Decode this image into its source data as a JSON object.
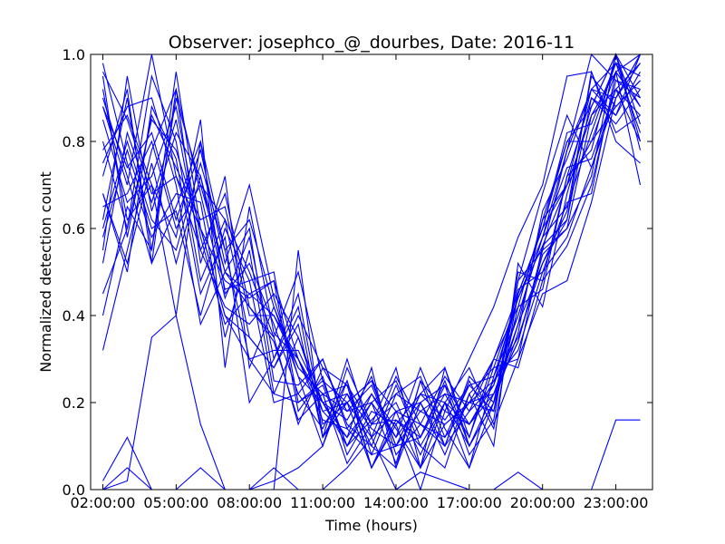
{
  "chart_data": {
    "type": "line",
    "title": "Observer: josephco_@_dourbes, Date: 2016-11",
    "xlabel": "Time (hours)",
    "ylabel": "Normalized detection count",
    "xlim": [
      1.5,
      24.5
    ],
    "ylim": [
      0.0,
      1.0
    ],
    "x": [
      2,
      3,
      4,
      5,
      6,
      7,
      8,
      9,
      10,
      11,
      12,
      13,
      14,
      15,
      16,
      17,
      18,
      19,
      20,
      21,
      22,
      23,
      24
    ],
    "x_ticks": [
      2,
      5,
      8,
      11,
      14,
      17,
      20,
      23
    ],
    "x_tick_labels": [
      "02:00:00",
      "05:00:00",
      "08:00:00",
      "11:00:00",
      "14:00:00",
      "17:00:00",
      "20:00:00",
      "23:00:00"
    ],
    "y_ticks": [
      0.0,
      0.2,
      0.4,
      0.6,
      0.8,
      1.0
    ],
    "y_tick_labels": [
      "0.0",
      "0.2",
      "0.4",
      "0.6",
      "0.8",
      "1.0"
    ],
    "line_color": "#0000ff",
    "grid": false,
    "legend": "none",
    "series": [
      {
        "values": [
          0.88,
          0.7,
          1.0,
          0.72,
          0.6,
          0.48,
          0.44,
          0.48,
          0.3,
          0.2,
          0.22,
          0.14,
          0.1,
          0.12,
          0.22,
          0.2,
          0.3,
          0.45,
          0.6,
          0.8,
          0.88,
          1.0,
          0.9
        ]
      },
      {
        "values": [
          0.62,
          0.9,
          0.55,
          0.9,
          0.7,
          0.62,
          0.5,
          0.35,
          0.5,
          0.25,
          0.2,
          0.05,
          0.15,
          0.0,
          0.18,
          0.3,
          0.42,
          0.58,
          0.7,
          0.95,
          0.96,
          0.8,
          0.75
        ]
      },
      {
        "values": [
          0.0,
          0.05,
          0.0,
          0.0,
          0.05,
          0.0,
          0.0,
          0.0,
          0.55,
          0.12,
          0.2,
          0.25,
          0.18,
          0.05,
          0.2,
          0.05,
          0.2,
          0.45,
          0.6,
          0.7,
          0.92,
          0.98,
          0.95
        ]
      },
      {
        "values": [
          0.02,
          0.12,
          0.0,
          0.0,
          0.0,
          0.0,
          0.0,
          0.02,
          0.05,
          0.1,
          0.25,
          0.08,
          0.1,
          0.22,
          0.28,
          0.1,
          0.2,
          0.48,
          0.55,
          0.78,
          1.0,
          0.94,
          0.92
        ]
      },
      {
        "values": [
          0.92,
          0.62,
          0.7,
          0.4,
          0.8,
          0.55,
          0.62,
          0.42,
          0.28,
          0.22,
          0.24,
          0.15,
          0.16,
          0.1,
          0.2,
          0.15,
          0.25,
          0.35,
          0.52,
          0.62,
          0.9,
          0.86,
          1.0
        ]
      },
      {
        "values": [
          0.8,
          0.6,
          0.85,
          0.78,
          0.6,
          0.4,
          0.3,
          0.22,
          0.35,
          0.2,
          0.12,
          0.2,
          0.06,
          0.25,
          0.1,
          0.18,
          0.24,
          0.4,
          0.58,
          0.65,
          0.82,
          0.98,
          0.88
        ]
      },
      {
        "values": [
          0.68,
          0.52,
          0.75,
          0.52,
          0.72,
          0.5,
          0.45,
          0.4,
          0.3,
          0.16,
          0.14,
          0.08,
          0.22,
          0.18,
          0.15,
          0.2,
          0.22,
          0.34,
          0.55,
          0.6,
          0.72,
          1.0,
          0.8
        ]
      },
      {
        "values": [
          0.58,
          0.78,
          0.6,
          0.64,
          0.4,
          0.6,
          0.48,
          0.5,
          0.2,
          0.25,
          0.1,
          0.22,
          0.12,
          0.2,
          0.08,
          0.22,
          0.28,
          0.3,
          0.45,
          0.48,
          0.66,
          0.9,
          1.0
        ]
      },
      {
        "values": [
          0.9,
          0.72,
          0.52,
          0.92,
          0.68,
          0.44,
          0.58,
          0.3,
          0.42,
          0.12,
          0.3,
          0.12,
          0.18,
          0.15,
          0.12,
          0.24,
          0.18,
          0.42,
          0.62,
          0.7,
          0.86,
          0.92,
          0.86
        ]
      },
      {
        "values": [
          0.75,
          0.88,
          0.9,
          0.7,
          0.38,
          0.5,
          0.42,
          0.35,
          0.15,
          0.28,
          0.18,
          0.2,
          0.25,
          0.12,
          0.24,
          0.08,
          0.16,
          0.5,
          0.48,
          0.72,
          0.78,
          1.0,
          0.84
        ]
      },
      {
        "values": [
          0.65,
          0.68,
          0.8,
          0.6,
          0.7,
          0.5,
          0.6,
          0.25,
          0.24,
          0.3,
          0.15,
          0.1,
          0.05,
          0.25,
          0.18,
          0.15,
          0.22,
          0.38,
          0.52,
          0.64,
          0.95,
          0.88,
          0.94
        ]
      },
      {
        "values": [
          0.52,
          0.82,
          0.66,
          0.85,
          0.55,
          0.42,
          0.38,
          0.45,
          0.35,
          0.18,
          0.2,
          0.25,
          0.1,
          0.18,
          0.22,
          0.12,
          0.28,
          0.44,
          0.56,
          0.7,
          0.8,
          0.96,
          0.7
        ]
      },
      {
        "values": [
          0.95,
          0.58,
          0.86,
          0.74,
          0.62,
          0.65,
          0.4,
          0.4,
          0.28,
          0.22,
          0.06,
          0.15,
          0.28,
          0.05,
          0.15,
          0.2,
          0.25,
          0.32,
          0.5,
          0.58,
          0.74,
          0.9,
          1.0
        ]
      },
      {
        "values": [
          0.72,
          0.92,
          0.52,
          0.65,
          0.8,
          0.45,
          0.52,
          0.38,
          0.22,
          0.14,
          0.25,
          0.05,
          0.18,
          0.2,
          0.1,
          0.25,
          0.14,
          0.45,
          0.6,
          0.82,
          0.84,
          0.98,
          0.82
        ]
      },
      {
        "values": [
          0.85,
          0.66,
          0.72,
          0.88,
          0.58,
          0.38,
          0.45,
          0.48,
          0.18,
          0.26,
          0.08,
          0.18,
          0.15,
          0.22,
          0.2,
          0.1,
          0.2,
          0.36,
          0.64,
          0.76,
          0.92,
          0.86,
          0.96
        ]
      },
      {
        "values": [
          0.6,
          0.8,
          0.62,
          0.55,
          0.75,
          0.55,
          0.3,
          0.32,
          0.32,
          0.2,
          0.16,
          0.26,
          0.08,
          0.15,
          0.26,
          0.18,
          0.3,
          0.28,
          0.48,
          0.56,
          0.7,
          0.94,
          0.9
        ]
      },
      {
        "values": [
          0.45,
          0.6,
          0.95,
          0.8,
          0.48,
          0.62,
          0.35,
          0.28,
          0.38,
          0.12,
          0.22,
          0.1,
          0.24,
          0.1,
          0.05,
          0.22,
          0.1,
          0.52,
          0.42,
          0.68,
          0.88,
          1.0,
          0.78
        ]
      },
      {
        "values": [
          0.98,
          0.75,
          0.58,
          0.68,
          0.66,
          0.35,
          0.55,
          0.22,
          0.2,
          0.24,
          0.1,
          0.2,
          0.12,
          0.28,
          0.14,
          0.05,
          0.26,
          0.4,
          0.58,
          0.74,
          0.76,
          0.92,
          0.98
        ]
      },
      {
        "values": [
          0.32,
          0.55,
          0.78,
          0.92,
          0.52,
          0.72,
          0.28,
          0.42,
          0.26,
          0.1,
          0.28,
          0.15,
          0.2,
          0.08,
          0.2,
          0.28,
          0.15,
          0.3,
          0.56,
          0.62,
          0.96,
          0.82,
          0.86
        ]
      },
      {
        "values": [
          0.78,
          0.86,
          0.7,
          0.58,
          0.85,
          0.28,
          0.65,
          0.36,
          0.3,
          0.18,
          0.12,
          0.28,
          0.05,
          0.2,
          0.24,
          0.15,
          0.24,
          0.46,
          0.5,
          0.66,
          0.68,
          0.96,
          1.0
        ]
      },
      {
        "values": [
          0.68,
          0.5,
          0.88,
          0.76,
          0.45,
          0.58,
          0.2,
          0.3,
          0.45,
          0.15,
          0.2,
          0.12,
          0.26,
          0.15,
          0.1,
          0.26,
          0.2,
          0.38,
          0.62,
          0.8,
          0.8,
          0.88,
          0.94
        ]
      },
      {
        "values": [
          0.55,
          0.95,
          0.64,
          0.82,
          0.72,
          0.46,
          0.48,
          0.2,
          0.22,
          0.3,
          0.14,
          0.22,
          0.14,
          0.05,
          0.28,
          0.12,
          0.3,
          0.42,
          0.46,
          0.72,
          0.9,
          0.84,
          0.92
        ]
      },
      {
        "values": [
          0.0,
          0.02,
          0.35,
          0.4,
          0.15,
          0.0,
          0.0,
          0.05,
          0.0,
          0.0,
          0.05,
          0.12,
          0.0,
          0.04,
          0.02,
          0.0,
          0.0,
          0.04,
          0.0,
          0.0,
          0.0,
          0.16,
          0.16
        ]
      },
      {
        "values": [
          0.88,
          0.74,
          0.82,
          0.62,
          0.78,
          0.52,
          0.7,
          0.44,
          0.26,
          0.2,
          0.1,
          0.16,
          0.22,
          0.26,
          0.12,
          0.2,
          0.18,
          0.48,
          0.68,
          0.86,
          0.74,
          0.92,
          0.8
        ]
      },
      {
        "values": [
          0.4,
          0.65,
          0.55,
          0.96,
          0.6,
          0.4,
          0.35,
          0.28,
          0.4,
          0.28,
          0.24,
          0.05,
          0.16,
          0.12,
          0.25,
          0.1,
          0.22,
          0.34,
          0.54,
          0.6,
          0.86,
          0.96,
          0.88
        ]
      },
      {
        "values": [
          0.96,
          0.85,
          0.68,
          0.72,
          0.55,
          0.68,
          0.42,
          0.34,
          0.16,
          0.22,
          0.18,
          0.24,
          0.1,
          0.22,
          0.16,
          0.24,
          0.26,
          0.44,
          0.58,
          0.78,
          0.92,
          0.9,
          0.98
        ]
      }
    ]
  }
}
